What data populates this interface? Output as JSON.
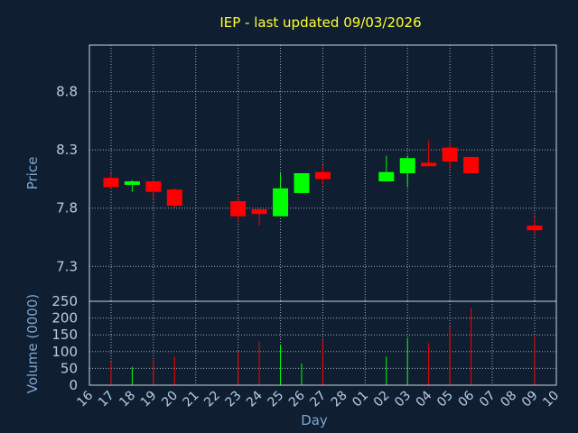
{
  "chart_data": [
    {
      "type": "candlestick",
      "title": "IEP - last updated 09/03/2026",
      "ylabel": "Price",
      "ylim": [
        7.0,
        9.2
      ],
      "yticks": [
        7.3,
        7.8,
        8.3,
        8.8
      ],
      "ytick_labels": [
        "7.3",
        "7.8",
        "8.3",
        "8.8"
      ],
      "grid": true,
      "colors": {
        "up": "#00ff00",
        "down": "#ff0000",
        "title": "#ffff33",
        "axis_label": "#7ea6cf",
        "background": "#0f1e30"
      },
      "candles": [
        {
          "day": "17",
          "open": 8.06,
          "high": 8.1,
          "low": 7.96,
          "close": 7.98
        },
        {
          "day": "18",
          "open": 8.0,
          "high": 8.04,
          "low": 7.94,
          "close": 8.03
        },
        {
          "day": "19",
          "open": 8.03,
          "high": 8.04,
          "low": 7.88,
          "close": 7.94
        },
        {
          "day": "20",
          "open": 7.96,
          "high": 7.97,
          "low": 7.8,
          "close": 7.82
        },
        {
          "day": "23",
          "open": 7.86,
          "high": 7.9,
          "low": 7.68,
          "close": 7.73
        },
        {
          "day": "24",
          "open": 7.79,
          "high": 7.8,
          "low": 7.65,
          "close": 7.75
        },
        {
          "day": "25",
          "open": 7.73,
          "high": 8.1,
          "low": 7.73,
          "close": 7.97
        },
        {
          "day": "26",
          "open": 7.93,
          "high": 8.1,
          "low": 7.93,
          "close": 8.1
        },
        {
          "day": "27",
          "open": 8.11,
          "high": 8.17,
          "low": 8.0,
          "close": 8.05
        },
        {
          "day": "02",
          "open": 8.03,
          "high": 8.25,
          "low": 8.03,
          "close": 8.11
        },
        {
          "day": "03",
          "open": 8.1,
          "high": 8.25,
          "low": 7.98,
          "close": 8.23
        },
        {
          "day": "04",
          "open": 8.19,
          "high": 8.38,
          "low": 8.16,
          "close": 8.16
        },
        {
          "day": "05",
          "open": 8.32,
          "high": 8.35,
          "low": 8.14,
          "close": 8.2
        },
        {
          "day": "06",
          "open": 8.24,
          "high": 8.24,
          "low": 8.1,
          "close": 8.1
        },
        {
          "day": "09",
          "open": 7.65,
          "high": 7.73,
          "low": 7.58,
          "close": 7.61
        }
      ]
    },
    {
      "type": "bar",
      "ylabel": "Volume (0000)",
      "xlabel": "Day",
      "ylim": [
        0,
        250
      ],
      "yticks": [
        0,
        50,
        100,
        150,
        200,
        250
      ],
      "categories": [
        "16",
        "17",
        "18",
        "19",
        "20",
        "21",
        "22",
        "23",
        "24",
        "25",
        "26",
        "27",
        "28",
        "01",
        "02",
        "03",
        "04",
        "05",
        "06",
        "07",
        "08",
        "09",
        "10"
      ],
      "values": [
        0,
        70,
        55,
        75,
        85,
        0,
        0,
        100,
        130,
        120,
        65,
        135,
        0,
        0,
        85,
        140,
        125,
        175,
        230,
        0,
        0,
        145,
        0
      ],
      "bar_colors": [
        "",
        "#ff0000",
        "#00ff00",
        "#ff0000",
        "#ff0000",
        "",
        "",
        "#ff0000",
        "#ff0000",
        "#00ff00",
        "#00ff00",
        "#ff0000",
        "",
        "",
        "#00ff00",
        "#00ff00",
        "#ff0000",
        "#ff0000",
        "#ff0000",
        "",
        "",
        "#ff0000",
        ""
      ],
      "grid": true
    }
  ]
}
